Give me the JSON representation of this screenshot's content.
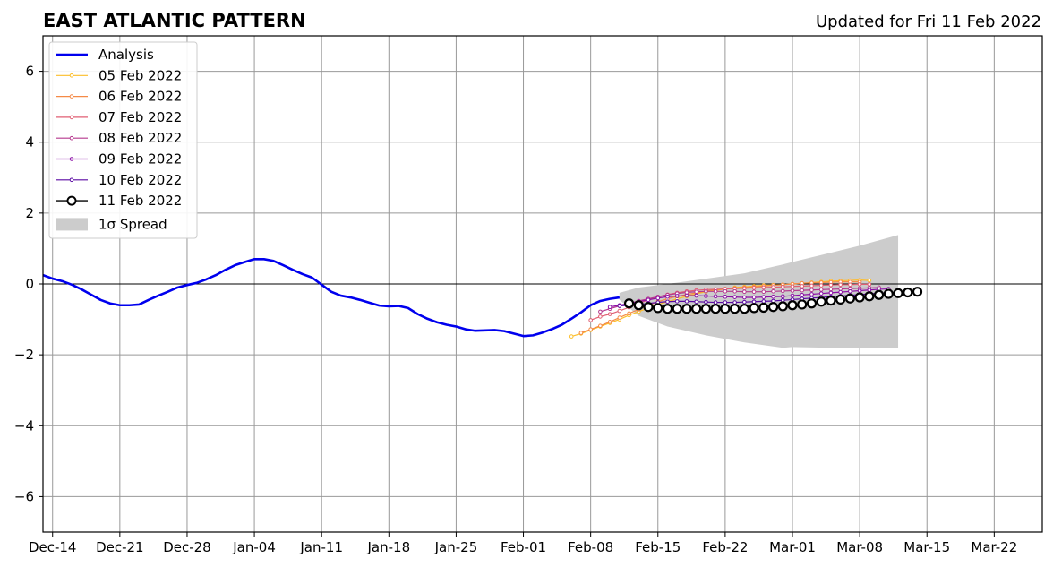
{
  "chart_data": {
    "type": "line",
    "title": "EAST ATLANTIC PATTERN",
    "subtitle": "Updated for Fri 11 Feb 2022",
    "xlabel": "",
    "ylabel": "",
    "ylim": [
      -7,
      7
    ],
    "yticks": [
      -6,
      -4,
      -2,
      0,
      2,
      4,
      6
    ],
    "ytick_labels": [
      "−6",
      "−4",
      "−2",
      "0",
      "2",
      "4",
      "6"
    ],
    "xlim": [
      "2021-12-13",
      "2022-03-27"
    ],
    "xticks": [
      "2021-12-14",
      "2021-12-21",
      "2021-12-28",
      "2022-01-04",
      "2022-01-11",
      "2022-01-18",
      "2022-01-25",
      "2022-02-01",
      "2022-02-08",
      "2022-02-15",
      "2022-02-22",
      "2022-03-01",
      "2022-03-08",
      "2022-03-15",
      "2022-03-22"
    ],
    "xtick_labels": [
      "Dec-14",
      "Dec-21",
      "Dec-28",
      "Jan-04",
      "Jan-11",
      "Jan-18",
      "Jan-25",
      "Feb-01",
      "Feb-08",
      "Feb-15",
      "Feb-22",
      "Mar-01",
      "Mar-08",
      "Mar-15",
      "Mar-22"
    ],
    "grid": true,
    "legend_position": "top-left",
    "zero_line": 0,
    "analysis": {
      "name": "Analysis",
      "color": "#0000ee",
      "points": [
        [
          "2021-12-13",
          0.25
        ],
        [
          "2021-12-14",
          0.15
        ],
        [
          "2021-12-15",
          0.08
        ],
        [
          "2021-12-16",
          -0.02
        ],
        [
          "2021-12-17",
          -0.15
        ],
        [
          "2021-12-18",
          -0.3
        ],
        [
          "2021-12-19",
          -0.45
        ],
        [
          "2021-12-20",
          -0.55
        ],
        [
          "2021-12-21",
          -0.6
        ],
        [
          "2021-12-22",
          -0.6
        ],
        [
          "2021-12-23",
          -0.58
        ],
        [
          "2021-12-24",
          -0.45
        ],
        [
          "2021-12-25",
          -0.33
        ],
        [
          "2021-12-26",
          -0.22
        ],
        [
          "2021-12-27",
          -0.1
        ],
        [
          "2021-12-28",
          -0.03
        ],
        [
          "2021-12-29",
          0.03
        ],
        [
          "2021-12-30",
          0.13
        ],
        [
          "2021-12-31",
          0.25
        ],
        [
          "2022-01-01",
          0.4
        ],
        [
          "2022-01-02",
          0.53
        ],
        [
          "2022-01-03",
          0.62
        ],
        [
          "2022-01-04",
          0.7
        ],
        [
          "2022-01-05",
          0.7
        ],
        [
          "2022-01-06",
          0.65
        ],
        [
          "2022-01-07",
          0.53
        ],
        [
          "2022-01-08",
          0.4
        ],
        [
          "2022-01-09",
          0.28
        ],
        [
          "2022-01-10",
          0.18
        ],
        [
          "2022-01-11",
          -0.02
        ],
        [
          "2022-01-12",
          -0.22
        ],
        [
          "2022-01-13",
          -0.33
        ],
        [
          "2022-01-14",
          -0.38
        ],
        [
          "2022-01-15",
          -0.45
        ],
        [
          "2022-01-16",
          -0.53
        ],
        [
          "2022-01-17",
          -0.61
        ],
        [
          "2022-01-18",
          -0.63
        ],
        [
          "2022-01-19",
          -0.62
        ],
        [
          "2022-01-20",
          -0.68
        ],
        [
          "2022-01-21",
          -0.85
        ],
        [
          "2022-01-22",
          -0.98
        ],
        [
          "2022-01-23",
          -1.08
        ],
        [
          "2022-01-24",
          -1.15
        ],
        [
          "2022-01-25",
          -1.2
        ],
        [
          "2022-01-26",
          -1.28
        ],
        [
          "2022-01-27",
          -1.32
        ],
        [
          "2022-01-28",
          -1.31
        ],
        [
          "2022-01-29",
          -1.3
        ],
        [
          "2022-01-30",
          -1.33
        ],
        [
          "2022-01-31",
          -1.4
        ],
        [
          "2022-02-01",
          -1.47
        ],
        [
          "2022-02-02",
          -1.45
        ],
        [
          "2022-02-03",
          -1.37
        ],
        [
          "2022-02-04",
          -1.27
        ],
        [
          "2022-02-05",
          -1.15
        ],
        [
          "2022-02-06",
          -0.98
        ],
        [
          "2022-02-07",
          -0.8
        ],
        [
          "2022-02-08",
          -0.6
        ],
        [
          "2022-02-09",
          -0.48
        ],
        [
          "2022-02-10",
          -0.42
        ],
        [
          "2022-02-11",
          -0.38
        ]
      ]
    },
    "spread": {
      "name": "1σ Spread",
      "color": "#cccccc",
      "upper": [
        [
          "2022-02-11",
          -0.25
        ],
        [
          "2022-02-13",
          -0.1
        ],
        [
          "2022-02-16",
          0.0
        ],
        [
          "2022-02-20",
          0.15
        ],
        [
          "2022-02-24",
          0.3
        ],
        [
          "2022-02-28",
          0.55
        ],
        [
          "2022-03-01",
          0.62
        ],
        [
          "2022-03-05",
          0.88
        ],
        [
          "2022-03-08",
          1.08
        ],
        [
          "2022-03-12",
          1.38
        ]
      ],
      "lower": [
        [
          "2022-02-11",
          -0.45
        ],
        [
          "2022-02-13",
          -0.9
        ],
        [
          "2022-02-16",
          -1.2
        ],
        [
          "2022-02-20",
          -1.45
        ],
        [
          "2022-02-24",
          -1.65
        ],
        [
          "2022-02-28",
          -1.8
        ],
        [
          "2022-03-01",
          -1.78
        ],
        [
          "2022-03-05",
          -1.8
        ],
        [
          "2022-03-08",
          -1.82
        ],
        [
          "2022-03-12",
          -1.82
        ]
      ]
    },
    "series": [
      {
        "name": "05 Feb 2022",
        "color": "#fcbe2a",
        "start": "2022-02-06",
        "values": [
          -1.48,
          -1.4,
          -1.3,
          -1.2,
          -1.1,
          -1.0,
          -0.88,
          -0.78,
          -0.68,
          -0.58,
          -0.5,
          -0.42,
          -0.35,
          -0.28,
          -0.22,
          -0.18,
          -0.14,
          -0.1,
          -0.08,
          -0.06,
          -0.04,
          -0.03,
          -0.02,
          0.0,
          0.02,
          0.04,
          0.06,
          0.08,
          0.09,
          0.1,
          0.11,
          0.1
        ]
      },
      {
        "name": "06 Feb 2022",
        "color": "#f58a47",
        "start": "2022-02-07",
        "values": [
          -1.38,
          -1.28,
          -1.18,
          -1.07,
          -0.95,
          -0.83,
          -0.72,
          -0.6,
          -0.5,
          -0.42,
          -0.35,
          -0.3,
          -0.25,
          -0.2,
          -0.16,
          -0.14,
          -0.12,
          -0.1,
          -0.08,
          -0.06,
          -0.04,
          -0.02,
          0.0,
          0.02,
          0.03,
          0.04,
          0.05,
          0.06,
          0.06,
          0.06
        ]
      },
      {
        "name": "07 Feb 2022",
        "color": "#e05f73",
        "start": "2022-02-08",
        "values": [
          -1.02,
          -0.92,
          -0.85,
          -0.76,
          -0.66,
          -0.55,
          -0.45,
          -0.37,
          -0.3,
          -0.25,
          -0.21,
          -0.18,
          -0.16,
          -0.15,
          -0.14,
          -0.13,
          -0.12,
          -0.11,
          -0.1,
          -0.09,
          -0.08,
          -0.07,
          -0.06,
          -0.05,
          -0.04,
          -0.03,
          -0.02,
          -0.02,
          -0.01,
          -0.01
        ]
      },
      {
        "name": "08 Feb 2022",
        "color": "#b5388e",
        "start": "2022-02-09",
        "values": [
          -0.78,
          -0.7,
          -0.62,
          -0.55,
          -0.48,
          -0.42,
          -0.36,
          -0.31,
          -0.27,
          -0.24,
          -0.22,
          -0.21,
          -0.21,
          -0.21,
          -0.21,
          -0.22,
          -0.22,
          -0.22,
          -0.21,
          -0.2,
          -0.19,
          -0.18,
          -0.17,
          -0.16,
          -0.15,
          -0.14,
          -0.13,
          -0.12,
          -0.11,
          -0.1
        ]
      },
      {
        "name": "09 Feb 2022",
        "color": "#8b0fa6",
        "start": "2022-02-10",
        "values": [
          -0.65,
          -0.6,
          -0.55,
          -0.5,
          -0.45,
          -0.4,
          -0.36,
          -0.34,
          -0.33,
          -0.33,
          -0.34,
          -0.35,
          -0.36,
          -0.37,
          -0.38,
          -0.38,
          -0.37,
          -0.36,
          -0.35,
          -0.33,
          -0.31,
          -0.29,
          -0.27,
          -0.25,
          -0.23,
          -0.21,
          -0.19,
          -0.17,
          -0.15,
          -0.14
        ]
      },
      {
        "name": "10 Feb 2022",
        "color": "#5a09a3",
        "start": "2022-02-11",
        "values": [
          -0.62,
          -0.6,
          -0.58,
          -0.55,
          -0.52,
          -0.5,
          -0.49,
          -0.49,
          -0.5,
          -0.51,
          -0.52,
          -0.52,
          -0.52,
          -0.51,
          -0.5,
          -0.49,
          -0.48,
          -0.46,
          -0.44,
          -0.42,
          -0.4,
          -0.38,
          -0.36,
          -0.34,
          -0.32,
          -0.3,
          -0.28,
          -0.26,
          -0.25,
          -0.24
        ]
      },
      {
        "name": "11 Feb 2022",
        "color": "#000000",
        "start": "2022-02-12",
        "values": [
          -0.55,
          -0.6,
          -0.65,
          -0.68,
          -0.7,
          -0.7,
          -0.7,
          -0.7,
          -0.7,
          -0.7,
          -0.7,
          -0.7,
          -0.7,
          -0.68,
          -0.67,
          -0.65,
          -0.63,
          -0.6,
          -0.58,
          -0.55,
          -0.5,
          -0.47,
          -0.44,
          -0.41,
          -0.38,
          -0.35,
          -0.31,
          -0.28,
          -0.26,
          -0.24,
          -0.22
        ]
      }
    ],
    "legend": [
      "Analysis",
      "05 Feb 2022",
      "06 Feb 2022",
      "07 Feb 2022",
      "08 Feb 2022",
      "09 Feb 2022",
      "10 Feb 2022",
      "11 Feb 2022",
      "1σ Spread"
    ]
  }
}
